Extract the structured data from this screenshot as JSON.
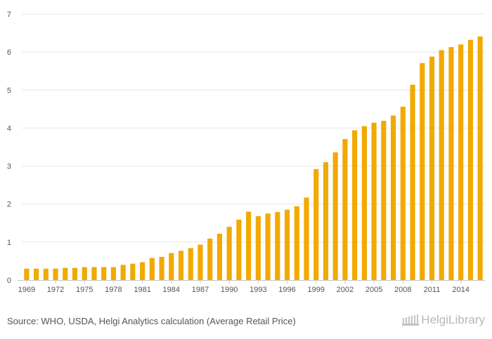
{
  "chart_data": {
    "type": "bar",
    "categories": [
      "1969",
      "1970",
      "1971",
      "1972",
      "1973",
      "1974",
      "1975",
      "1976",
      "1977",
      "1978",
      "1979",
      "1980",
      "1981",
      "1982",
      "1983",
      "1984",
      "1985",
      "1986",
      "1987",
      "1988",
      "1989",
      "1990",
      "1991",
      "1992",
      "1993",
      "1994",
      "1995",
      "1996",
      "1997",
      "1998",
      "1999",
      "2000",
      "2001",
      "2002",
      "2003",
      "2004",
      "2005",
      "2006",
      "2007",
      "2008",
      "2009",
      "2010",
      "2011",
      "2012",
      "2013",
      "2014",
      "2015",
      "2016"
    ],
    "x_tick_labels": [
      "1969",
      "1972",
      "1975",
      "1978",
      "1981",
      "1984",
      "1987",
      "1990",
      "1993",
      "1996",
      "1999",
      "2002",
      "2005",
      "2008",
      "2011",
      "2014"
    ],
    "y_ticks": [
      0,
      1,
      2,
      3,
      4,
      5,
      6,
      7
    ],
    "values": [
      0.3,
      0.3,
      0.3,
      0.3,
      0.32,
      0.32,
      0.34,
      0.34,
      0.34,
      0.34,
      0.4,
      0.43,
      0.47,
      0.58,
      0.61,
      0.71,
      0.77,
      0.84,
      0.93,
      1.09,
      1.22,
      1.4,
      1.59,
      1.8,
      1.68,
      1.75,
      1.79,
      1.85,
      1.94,
      2.17,
      2.92,
      3.1,
      3.36,
      3.71,
      3.94,
      4.05,
      4.14,
      4.19,
      4.33,
      4.56,
      5.14,
      5.71,
      5.88,
      6.05,
      6.13,
      6.2,
      6.32,
      6.41
    ],
    "ylim": [
      0,
      7
    ],
    "title": "",
    "xlabel": "",
    "ylabel": "",
    "grid": true,
    "bar_color": "#f2a900",
    "grid_color": "#e5e5e5"
  },
  "footer": {
    "source": "Source: WHO, USDA, Helgi Analytics calculation (Average Retail Price)",
    "logo_text": "HelgiLibrary",
    "logo_icon": "library-building-icon"
  }
}
